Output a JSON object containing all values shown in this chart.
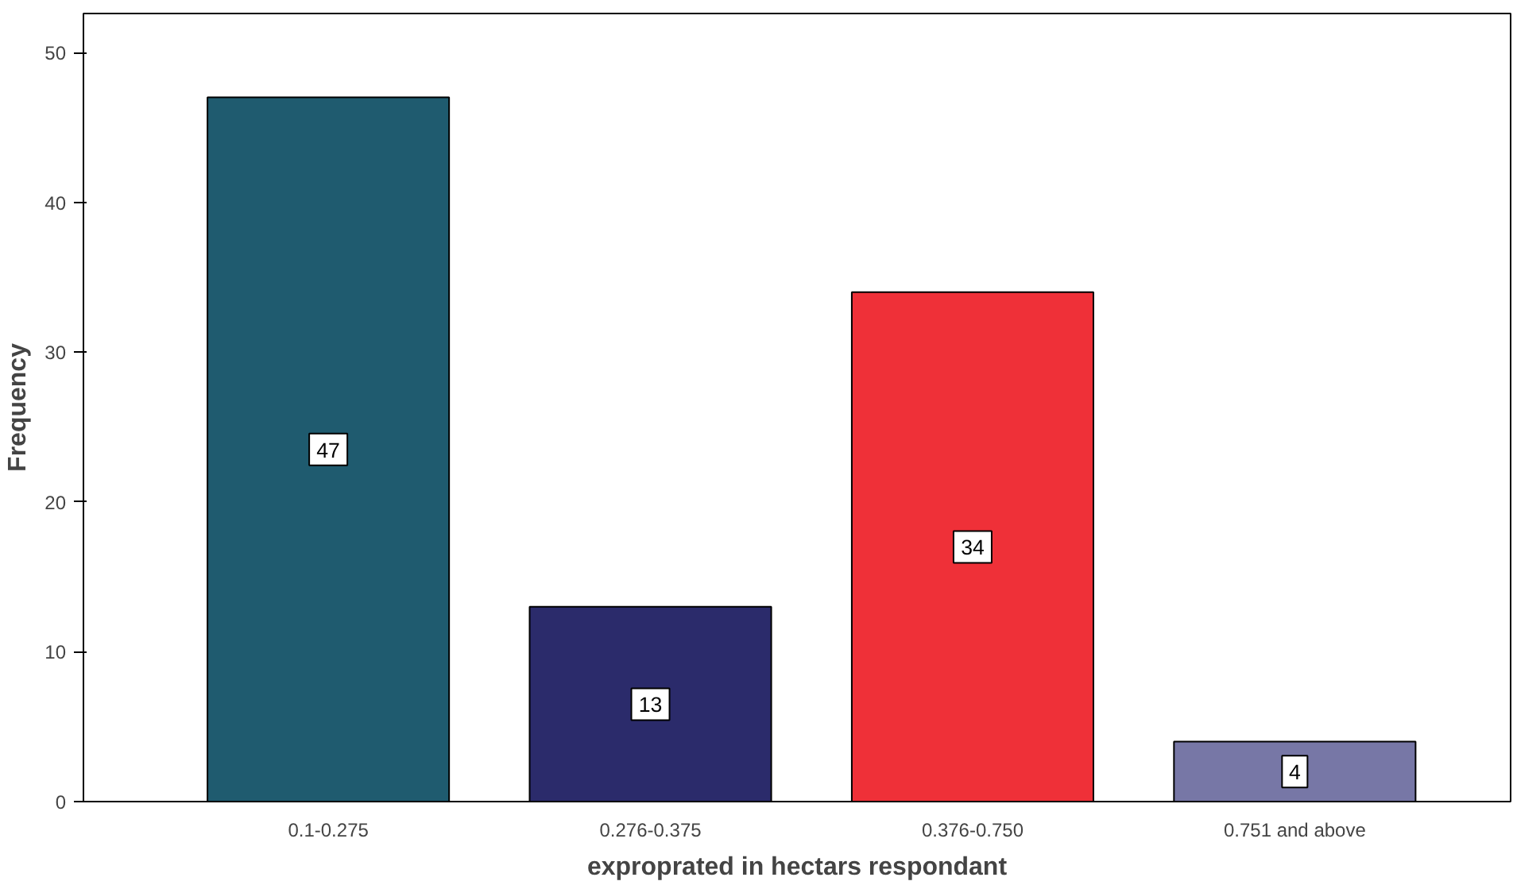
{
  "chart_data": {
    "type": "bar",
    "xlabel": "exproprated in hectars respondant",
    "ylabel": "Frequency",
    "categories": [
      "0.1-0.275",
      "0.276-0.375",
      "0.376-0.750",
      "0.751 and above"
    ],
    "values": [
      47,
      13,
      34,
      4
    ],
    "colors": [
      "#1f5b6f",
      "#2b2b6b",
      "#ef3038",
      "#7777a6"
    ],
    "ylim": [
      0,
      52.6
    ],
    "yticks": [
      0,
      10,
      20,
      30,
      40,
      50
    ],
    "data_labels": true,
    "grid": false
  }
}
